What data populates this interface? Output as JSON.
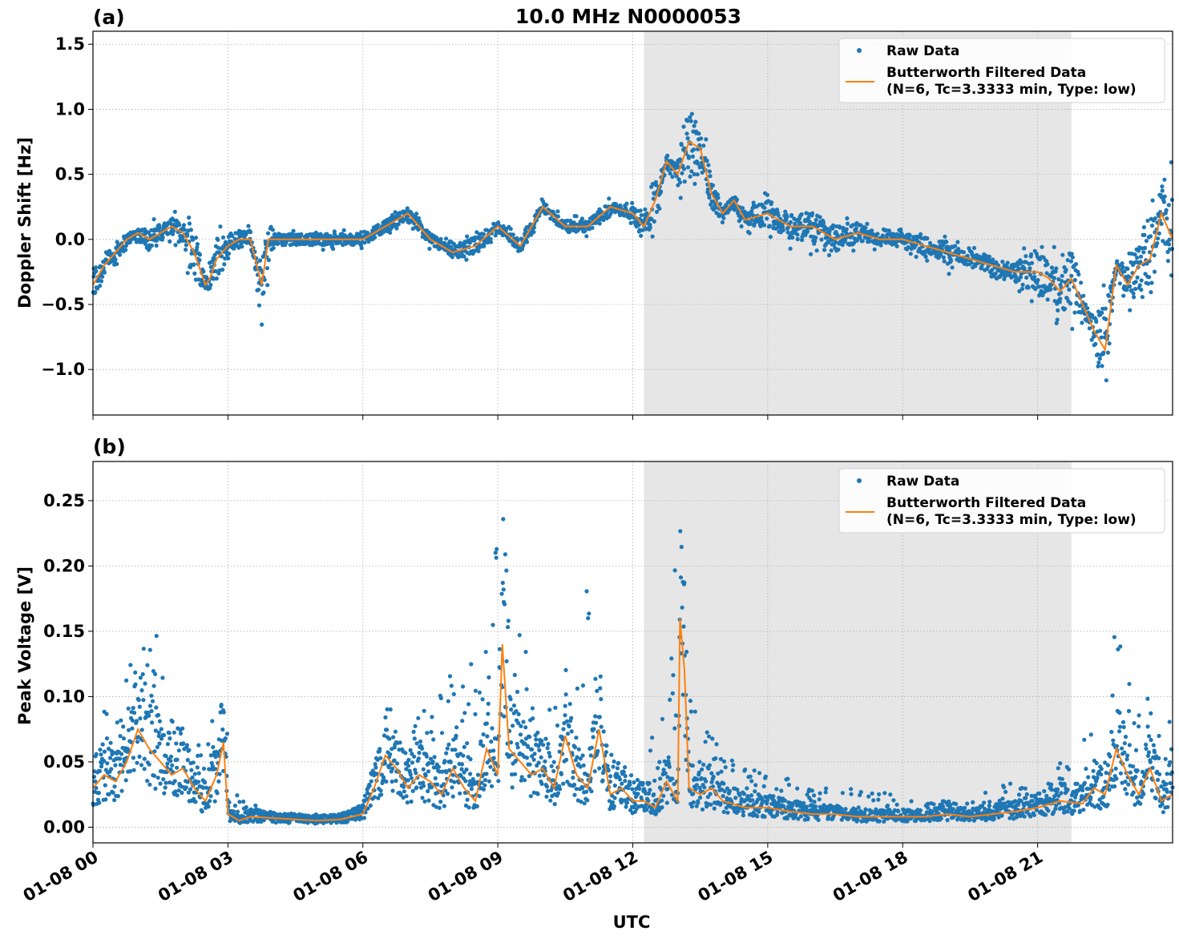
{
  "figure": {
    "title": "10.0 MHz N0000053",
    "xlabel": "UTC",
    "colors": {
      "raw": "#1f77b4",
      "filtered": "#ff7f0e",
      "shade": "#e6e6e6",
      "grid": "#b0b0b0"
    }
  },
  "legend": {
    "raw_label": "Raw Data",
    "filtered_label_line1": "Butterworth Filtered Data",
    "filtered_label_line2": "(N=6, Tc=3.3333 min, Type: low)",
    "placement": "top-right"
  },
  "chart_data": [
    {
      "type": "scatter",
      "panel_label": "(a)",
      "ylabel": "Doppler Shift [Hz]",
      "xlim_hours": [
        0,
        24
      ],
      "ylim": [
        -1.35,
        1.6
      ],
      "yticks": [
        -1.0,
        -0.5,
        0.0,
        0.5,
        1.0,
        1.5
      ],
      "ytick_labels": [
        "−1.0",
        "−0.5",
        "0.0",
        "0.5",
        "1.0",
        "1.5"
      ],
      "xtick_labels": [
        "01-08 00",
        "01-08 03",
        "01-08 06",
        "01-08 09",
        "01-08 12",
        "01-08 15",
        "01-08 18",
        "01-08 21"
      ],
      "grid": true,
      "shaded_region_hours": [
        12.25,
        21.75
      ],
      "series": [
        {
          "name": "Raw Data",
          "kind": "scatter",
          "x_hours": [
            0,
            0.5,
            1,
            1.5,
            2,
            2.25,
            2.5,
            2.75,
            3,
            3.5,
            3.75,
            4,
            4.5,
            5,
            5.5,
            6,
            6.5,
            7,
            7.5,
            8,
            8.5,
            9,
            9.5,
            10,
            10.5,
            11,
            11.5,
            12,
            12.25,
            12.5,
            13,
            13.25,
            13.5,
            13.75,
            14,
            14.25,
            14.5,
            15,
            15.5,
            16,
            16.5,
            17,
            17.5,
            18,
            18.5,
            19,
            19.5,
            20,
            20.5,
            21,
            21.5,
            22,
            22.5,
            23,
            23.5,
            24
          ],
          "y": [
            -0.55,
            -0.05,
            0.05,
            0.1,
            0.0,
            -0.45,
            -0.3,
            0.05,
            0.05,
            0.05,
            -0.6,
            0.0,
            0.0,
            0.0,
            0.0,
            0.0,
            0.1,
            0.2,
            0.0,
            -0.1,
            0.0,
            0.1,
            -0.05,
            0.25,
            0.1,
            0.1,
            0.25,
            0.2,
            0.25,
            0.5,
            0.6,
            1.2,
            0.9,
            0.5,
            0.2,
            0.3,
            0.2,
            0.3,
            0.2,
            0.25,
            0.1,
            0.1,
            0.0,
            0.0,
            -0.1,
            0.0,
            -0.2,
            -0.1,
            -0.3,
            -0.5,
            -0.6,
            -0.7,
            -0.3,
            -0.2,
            0.3,
            0.6
          ]
        },
        {
          "name": "Butterworth Filtered Data",
          "kind": "line",
          "x_hours": [
            0,
            0.25,
            0.5,
            0.75,
            1,
            1.25,
            1.5,
            1.75,
            2,
            2.25,
            2.5,
            2.6,
            2.75,
            3,
            3.25,
            3.5,
            3.75,
            3.9,
            4,
            4.5,
            5,
            5.5,
            6,
            6.5,
            7,
            7.5,
            8,
            8.5,
            9,
            9.5,
            10,
            10.5,
            11,
            11.5,
            12,
            12.25,
            12.5,
            12.75,
            13,
            13.25,
            13.5,
            13.75,
            14,
            14.25,
            14.5,
            15,
            15.5,
            16,
            16.5,
            17,
            17.5,
            18,
            18.5,
            19,
            19.5,
            20,
            20.5,
            21,
            21.25,
            21.5,
            21.75,
            22,
            22.25,
            22.5,
            22.75,
            23,
            23.25,
            23.5,
            23.75,
            24
          ],
          "y": [
            -0.35,
            -0.2,
            -0.1,
            0.0,
            0.05,
            0.0,
            0.05,
            0.1,
            0.05,
            -0.1,
            -0.35,
            -0.3,
            -0.15,
            -0.05,
            0.0,
            0.0,
            -0.35,
            0.0,
            0.0,
            0.0,
            0.0,
            0.0,
            0.0,
            0.1,
            0.2,
            0.0,
            -0.1,
            -0.05,
            0.1,
            -0.05,
            0.25,
            0.1,
            0.1,
            0.25,
            0.2,
            0.1,
            0.3,
            0.6,
            0.5,
            0.75,
            0.7,
            0.35,
            0.2,
            0.3,
            0.15,
            0.2,
            0.1,
            0.1,
            0.0,
            0.05,
            0.0,
            0.0,
            -0.05,
            -0.1,
            -0.15,
            -0.2,
            -0.25,
            -0.25,
            -0.3,
            -0.4,
            -0.3,
            -0.5,
            -0.7,
            -0.85,
            -0.2,
            -0.35,
            -0.2,
            -0.15,
            0.2,
            0.0
          ]
        }
      ]
    },
    {
      "type": "scatter",
      "panel_label": "(b)",
      "ylabel": "Peak Voltage [V]",
      "xlim_hours": [
        0,
        24
      ],
      "ylim": [
        -0.012,
        0.28
      ],
      "yticks": [
        0.0,
        0.05,
        0.1,
        0.15,
        0.2,
        0.25
      ],
      "ytick_labels": [
        "0.00",
        "0.05",
        "0.10",
        "0.15",
        "0.20",
        "0.25"
      ],
      "xtick_labels": [
        "01-08 00",
        "01-08 03",
        "01-08 06",
        "01-08 09",
        "01-08 12",
        "01-08 15",
        "01-08 18",
        "01-08 21"
      ],
      "grid": true,
      "shaded_region_hours": [
        12.25,
        21.75
      ],
      "series": [
        {
          "name": "Raw Data",
          "kind": "scatter",
          "x_hours": [
            0,
            0.5,
            1,
            1.25,
            1.5,
            1.75,
            2,
            2.5,
            2.75,
            3,
            3.25,
            3.5,
            4,
            4.5,
            5,
            5.5,
            6,
            6.25,
            6.5,
            6.75,
            7,
            7.5,
            8,
            8.5,
            8.75,
            9,
            9.25,
            9.5,
            9.75,
            10,
            10.25,
            10.5,
            10.75,
            11,
            11.25,
            11.5,
            11.75,
            12,
            12.25,
            12.5,
            13,
            13.1,
            13.25,
            13.5,
            14,
            14.5,
            15,
            15.5,
            16,
            16.5,
            17,
            17.5,
            18,
            18.5,
            19,
            19.5,
            20,
            20.5,
            21,
            21.5,
            22,
            22.5,
            22.75,
            23,
            23.25,
            23.5,
            24
          ],
          "y": [
            0.1,
            0.08,
            0.16,
            0.14,
            0.15,
            0.09,
            0.08,
            0.06,
            0.1,
            0.07,
            0.02,
            0.02,
            0.01,
            0.01,
            0.01,
            0.01,
            0.02,
            0.05,
            0.08,
            0.11,
            0.1,
            0.09,
            0.12,
            0.14,
            0.15,
            0.27,
            0.21,
            0.16,
            0.12,
            0.11,
            0.09,
            0.14,
            0.11,
            0.2,
            0.09,
            0.06,
            0.05,
            0.04,
            0.04,
            0.1,
            0.23,
            0.22,
            0.11,
            0.08,
            0.06,
            0.05,
            0.04,
            0.04,
            0.03,
            0.03,
            0.03,
            0.03,
            0.02,
            0.02,
            0.02,
            0.02,
            0.03,
            0.04,
            0.04,
            0.05,
            0.07,
            0.08,
            0.16,
            0.12,
            0.1,
            0.1,
            0.1
          ]
        },
        {
          "name": "Butterworth Filtered Data",
          "kind": "line",
          "x_hours": [
            0,
            0.25,
            0.5,
            0.75,
            1,
            1.25,
            1.5,
            1.75,
            2,
            2.25,
            2.5,
            2.75,
            2.9,
            3,
            3.25,
            3.5,
            4,
            4.5,
            5,
            5.5,
            6,
            6.25,
            6.5,
            6.75,
            7,
            7.25,
            7.5,
            7.75,
            8,
            8.25,
            8.5,
            8.75,
            9,
            9.1,
            9.25,
            9.5,
            9.75,
            10,
            10.25,
            10.5,
            10.75,
            11,
            11.25,
            11.5,
            11.75,
            12,
            12.25,
            12.5,
            12.75,
            13,
            13.05,
            13.15,
            13.25,
            13.5,
            13.75,
            14,
            14.5,
            15,
            15.5,
            16,
            16.5,
            17,
            17.5,
            18,
            18.5,
            19,
            19.5,
            20,
            20.5,
            21,
            21.5,
            22,
            22.25,
            22.5,
            22.75,
            23,
            23.25,
            23.5,
            23.75,
            24
          ],
          "y": [
            0.03,
            0.04,
            0.035,
            0.05,
            0.075,
            0.06,
            0.05,
            0.04,
            0.045,
            0.03,
            0.02,
            0.04,
            0.065,
            0.01,
            0.005,
            0.008,
            0.007,
            0.006,
            0.005,
            0.006,
            0.01,
            0.03,
            0.055,
            0.045,
            0.03,
            0.04,
            0.035,
            0.025,
            0.045,
            0.03,
            0.02,
            0.06,
            0.04,
            0.14,
            0.06,
            0.05,
            0.04,
            0.045,
            0.03,
            0.07,
            0.04,
            0.03,
            0.075,
            0.025,
            0.03,
            0.02,
            0.02,
            0.015,
            0.035,
            0.02,
            0.16,
            0.12,
            0.03,
            0.025,
            0.03,
            0.02,
            0.015,
            0.015,
            0.012,
            0.01,
            0.01,
            0.008,
            0.008,
            0.008,
            0.008,
            0.01,
            0.008,
            0.01,
            0.012,
            0.015,
            0.02,
            0.018,
            0.03,
            0.025,
            0.06,
            0.04,
            0.025,
            0.045,
            0.02,
            0.025
          ]
        }
      ]
    }
  ]
}
